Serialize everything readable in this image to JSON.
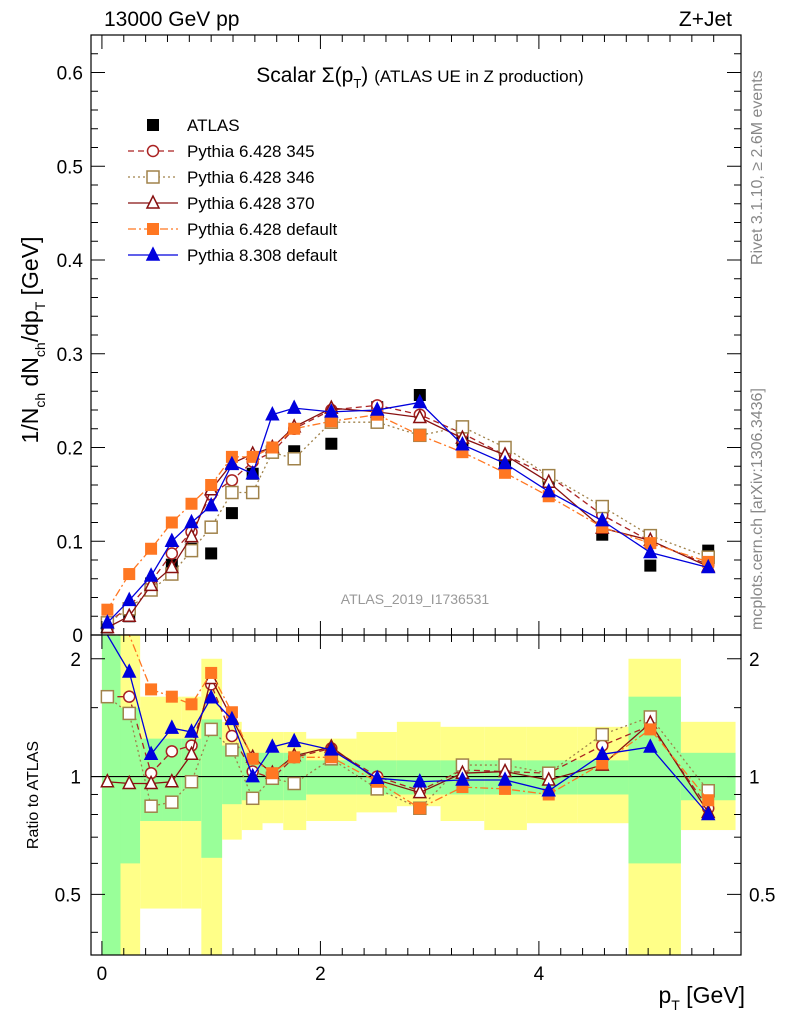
{
  "header": {
    "left": "13000 GeV pp",
    "right": "Z+Jet"
  },
  "side_text": {
    "rivet": "Rivet 3.1.10, ≥ 2.6M events",
    "mcplots": "mcplots.cern.ch [arXiv:1306.3436]"
  },
  "analysis_id": "ATLAS_2019_I1736531",
  "chart_data": [
    {
      "type": "scatter",
      "title": "Scalar Σ(p_T) (ATLAS UE in Z production)",
      "title_parts": {
        "prefix": "Scalar ",
        "sigma": "Σ(p",
        "sub": "T",
        "suffix": ")",
        "rest": "(ATLAS UE in Z production)"
      },
      "ylabel": "1/N_ch dN_ch/dp_T [GeV]",
      "ylabel_parts": {
        "a": "1/N",
        "b": "ch",
        "c": " dN",
        "d": "ch",
        "e": "/dp",
        "f": "T",
        "g": " [GeV]"
      },
      "ylim": [
        0,
        0.64
      ],
      "xlim": [
        -0.1,
        5.85
      ],
      "yticks": [
        0,
        0.1,
        0.2,
        0.3,
        0.4,
        0.5,
        0.6
      ],
      "ytick_labels": [
        "0",
        "0.1",
        "0.2",
        "0.3",
        "0.4",
        "0.5",
        "0.6"
      ],
      "legend_position": "top-left",
      "x": [
        0.05,
        0.25,
        0.45,
        0.64,
        0.82,
        1.0,
        1.19,
        1.38,
        1.56,
        1.76,
        2.1,
        2.52,
        2.91,
        3.3,
        3.69,
        4.09,
        4.58,
        5.02,
        5.55
      ],
      "series": [
        {
          "name": "ATLAS",
          "color": "#000000",
          "marker": "square-filled",
          "line": "none",
          "values": [
            0.008,
            0.02,
            0.055,
            0.075,
            0.092,
            0.087,
            0.13,
            0.172,
            0.197,
            0.196,
            0.204,
            0.243,
            0.256,
            0.207,
            0.186,
            0.166,
            0.107,
            0.074,
            0.09
          ]
        },
        {
          "name": "Pythia 6.428 345",
          "color": "#aa2222",
          "marker": "circle-open",
          "line": "dashed",
          "values": [
            0.013,
            0.03,
            0.057,
            0.087,
            0.11,
            0.15,
            0.165,
            0.185,
            0.195,
            0.22,
            0.24,
            0.245,
            0.235,
            0.215,
            0.192,
            0.17,
            0.128,
            0.1,
            0.075
          ]
        },
        {
          "name": "Pythia 6.428 346",
          "color": "#a0824a",
          "marker": "square-open",
          "line": "dotted",
          "values": [
            0.013,
            0.028,
            0.048,
            0.065,
            0.09,
            0.115,
            0.152,
            0.152,
            0.195,
            0.188,
            0.227,
            0.227,
            0.213,
            0.222,
            0.2,
            0.17,
            0.137,
            0.106,
            0.083
          ]
        },
        {
          "name": "Pythia 6.428 370",
          "color": "#881111",
          "marker": "triangle-open",
          "line": "solid",
          "values": [
            0.008,
            0.02,
            0.053,
            0.072,
            0.105,
            0.155,
            0.183,
            0.193,
            0.2,
            0.222,
            0.242,
            0.238,
            0.232,
            0.21,
            0.192,
            0.163,
            0.114,
            0.101,
            0.073
          ]
        },
        {
          "name": "Pythia 6.428 default",
          "color": "#ff7722",
          "marker": "square-filled",
          "line": "dashdot",
          "values": [
            0.027,
            0.065,
            0.092,
            0.12,
            0.14,
            0.16,
            0.19,
            0.19,
            0.2,
            0.22,
            0.228,
            0.235,
            0.213,
            0.195,
            0.173,
            0.148,
            0.115,
            0.098,
            0.078
          ]
        },
        {
          "name": "Pythia 8.308 default",
          "color": "#0000dd",
          "marker": "triangle-filled",
          "line": "solid",
          "values": [
            0.013,
            0.037,
            0.063,
            0.1,
            0.12,
            0.138,
            0.182,
            0.172,
            0.235,
            0.242,
            0.238,
            0.24,
            0.248,
            0.203,
            0.183,
            0.153,
            0.122,
            0.088,
            0.072
          ]
        }
      ]
    },
    {
      "type": "scatter",
      "title": "",
      "xlabel": "p_T [GeV]",
      "xlabel_parts": {
        "p": "p",
        "sub": "T",
        "unit": " [GeV]"
      },
      "ylabel": "Ratio to ATLAS",
      "ylim": [
        0.35,
        2.3
      ],
      "xlim": [
        -0.1,
        5.85
      ],
      "yscale": "log",
      "yticks": [
        0.5,
        1,
        2
      ],
      "ytick_labels": [
        "0.5",
        "1",
        "2"
      ],
      "xticks": [
        0,
        2,
        4
      ],
      "xtick_labels": [
        "0",
        "2",
        "4"
      ],
      "reference_line": 1,
      "bands": {
        "bin_edges": [
          0.0,
          0.17,
          0.35,
          0.55,
          0.73,
          0.91,
          1.1,
          1.28,
          1.47,
          1.66,
          1.87,
          2.33,
          2.7,
          3.1,
          3.5,
          3.89,
          4.35,
          4.82,
          5.3,
          5.8
        ],
        "green_lo": [
          0.35,
          0.6,
          0.77,
          0.77,
          0.77,
          0.62,
          0.85,
          0.87,
          0.87,
          0.87,
          0.9,
          0.9,
          0.9,
          0.9,
          0.9,
          0.9,
          0.9,
          0.6,
          0.87
        ],
        "green_hi": [
          2.3,
          1.5,
          1.25,
          1.25,
          1.25,
          1.4,
          1.2,
          1.15,
          1.15,
          1.15,
          1.1,
          1.1,
          1.1,
          1.1,
          1.1,
          1.1,
          1.1,
          1.6,
          1.15
        ],
        "yellow_lo": [
          0.35,
          0.35,
          0.46,
          0.46,
          0.46,
          0.35,
          0.69,
          0.73,
          0.76,
          0.73,
          0.77,
          0.81,
          0.84,
          0.77,
          0.73,
          0.76,
          0.76,
          0.35,
          0.73
        ],
        "yellow_hi": [
          2.3,
          2.3,
          1.6,
          1.6,
          1.6,
          2.0,
          1.38,
          1.3,
          1.3,
          1.3,
          1.25,
          1.3,
          1.38,
          1.34,
          1.34,
          1.34,
          1.34,
          2.0,
          1.38
        ],
        "green_color": "#99ff99",
        "yellow_color": "#ffff88"
      },
      "x": [
        0.05,
        0.25,
        0.45,
        0.64,
        0.82,
        1.0,
        1.19,
        1.38,
        1.56,
        1.76,
        2.1,
        2.52,
        2.91,
        3.3,
        3.69,
        4.09,
        4.58,
        5.02,
        5.55
      ],
      "series": [
        {
          "name": "Pythia 6.428 345",
          "color": "#aa2222",
          "marker": "circle-open",
          "line": "dashed",
          "values": [
            1.6,
            1.6,
            1.02,
            1.16,
            1.2,
            1.72,
            1.27,
            1.03,
            0.99,
            1.12,
            1.18,
            1.0,
            0.92,
            1.04,
            1.03,
            1.02,
            1.2,
            1.35,
            0.83
          ]
        },
        {
          "name": "Pythia 6.428 346",
          "color": "#a0824a",
          "marker": "square-open",
          "line": "dotted",
          "values": [
            1.6,
            1.45,
            0.84,
            0.86,
            0.97,
            1.32,
            1.17,
            0.88,
            0.99,
            0.96,
            1.11,
            0.93,
            0.83,
            1.07,
            1.07,
            1.02,
            1.28,
            1.42,
            0.92
          ]
        },
        {
          "name": "Pythia 6.428 370",
          "color": "#881111",
          "marker": "triangle-open",
          "line": "solid",
          "values": [
            0.97,
            0.96,
            0.96,
            0.97,
            1.14,
            1.78,
            1.41,
            1.12,
            1.02,
            1.13,
            1.19,
            0.98,
            0.91,
            1.02,
            1.03,
            0.98,
            1.07,
            1.37,
            0.81
          ]
        },
        {
          "name": "Pythia 6.428 default",
          "color": "#ff7722",
          "marker": "square-filled",
          "line": "dashdot",
          "values": [
            2.3,
            2.3,
            1.67,
            1.6,
            1.53,
            1.84,
            1.46,
            1.11,
            1.02,
            1.12,
            1.12,
            0.97,
            0.83,
            0.94,
            0.93,
            0.9,
            1.08,
            1.32,
            0.87
          ]
        },
        {
          "name": "Pythia 8.308 default",
          "color": "#0000dd",
          "marker": "triangle-filled",
          "line": "solid",
          "values": [
            2.3,
            1.85,
            1.14,
            1.33,
            1.3,
            1.59,
            1.4,
            1.0,
            1.19,
            1.23,
            1.17,
            0.99,
            0.97,
            0.98,
            0.98,
            0.92,
            1.14,
            1.19,
            0.8
          ]
        }
      ]
    }
  ]
}
